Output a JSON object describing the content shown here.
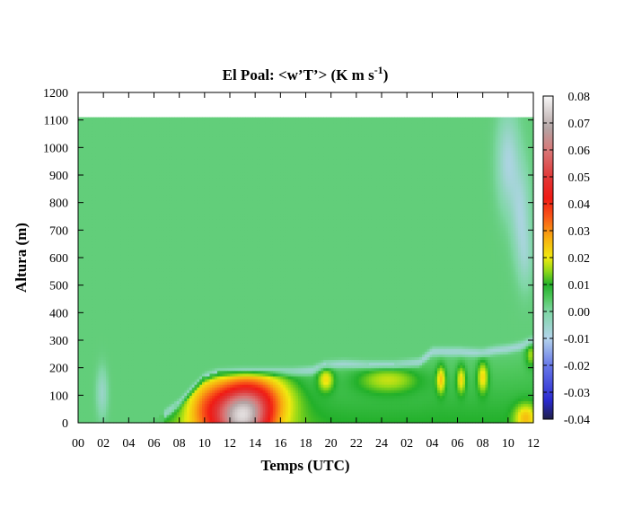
{
  "chart_data": {
    "type": "heatmap",
    "title": "El Poal: <w’T’> (K m s",
    "title_superscript": "-1",
    "title_suffix": ")",
    "xlabel": "Temps (UTC)",
    "ylabel": "Altura (m)",
    "x_tick_labels": [
      "00",
      "02",
      "04",
      "06",
      "08",
      "10",
      "12",
      "14",
      "16",
      "18",
      "20",
      "22",
      "24",
      "02",
      "04",
      "06",
      "08",
      "10",
      "12"
    ],
    "x_range_hours": [
      0,
      36
    ],
    "ylim": [
      0,
      1200
    ],
    "y_ticks": [
      0,
      100,
      200,
      300,
      400,
      500,
      600,
      700,
      800,
      900,
      1000,
      1100,
      1200
    ],
    "data_top_height": 1110,
    "background_value": 0.003,
    "colorbar": {
      "range": [
        -0.04,
        0.08
      ],
      "ticks": [
        "0.08",
        "0.07",
        "0.06",
        "0.05",
        "0.04",
        "0.03",
        "0.02",
        "0.01",
        "0.00",
        "-0.01",
        "-0.02",
        "-0.03",
        "-0.04"
      ],
      "stops": [
        {
          "v": -0.04,
          "color": "#20204a"
        },
        {
          "v": -0.033,
          "color": "#2a2ad0"
        },
        {
          "v": -0.02,
          "color": "#6878e8"
        },
        {
          "v": -0.01,
          "color": "#b4d4ec"
        },
        {
          "v": 0.0,
          "color": "#7ed6a4"
        },
        {
          "v": 0.005,
          "color": "#50c85e"
        },
        {
          "v": 0.01,
          "color": "#22b02a"
        },
        {
          "v": 0.015,
          "color": "#90d818"
        },
        {
          "v": 0.02,
          "color": "#f0ea10"
        },
        {
          "v": 0.027,
          "color": "#f8b010"
        },
        {
          "v": 0.035,
          "color": "#f85818"
        },
        {
          "v": 0.042,
          "color": "#f01a14"
        },
        {
          "v": 0.05,
          "color": "#e03838"
        },
        {
          "v": 0.06,
          "color": "#d87878"
        },
        {
          "v": 0.068,
          "color": "#b4a4a4"
        },
        {
          "v": 0.08,
          "color": "#f8f8f8"
        }
      ]
    },
    "boundary_layer_top": {
      "t_hours": [
        0,
        5.7,
        6.5,
        8,
        9,
        10,
        11,
        13,
        15,
        17,
        18.5,
        19.5,
        21,
        23,
        25,
        27,
        28,
        30,
        32,
        33,
        34,
        35,
        36
      ],
      "height_m": [
        0,
        0,
        20,
        70,
        120,
        165,
        180,
        185,
        185,
        185,
        190,
        210,
        215,
        210,
        210,
        220,
        260,
        260,
        255,
        265,
        270,
        280,
        300
      ]
    },
    "heat_flux_cores": [
      {
        "t": 13.0,
        "h": 20,
        "sx": 1.5,
        "sh": 70,
        "v": 0.044
      },
      {
        "t": 12.8,
        "h": 70,
        "sx": 2.6,
        "sh": 110,
        "v": 0.02
      },
      {
        "t": 14.5,
        "h": 100,
        "sx": 1.8,
        "sh": 60,
        "v": 0.012
      },
      {
        "t": 10.0,
        "h": 60,
        "sx": 1.3,
        "sh": 80,
        "v": 0.012
      },
      {
        "t": 19.6,
        "h": 160,
        "sx": 0.45,
        "sh": 30,
        "v": 0.016
      },
      {
        "t": 24.5,
        "h": 160,
        "sx": 1.8,
        "sh": 35,
        "v": 0.013
      },
      {
        "t": 28.7,
        "h": 160,
        "sx": 0.25,
        "sh": 35,
        "v": 0.018
      },
      {
        "t": 30.3,
        "h": 160,
        "sx": 0.25,
        "sh": 35,
        "v": 0.016
      },
      {
        "t": 32.0,
        "h": 170,
        "sx": 0.3,
        "sh": 40,
        "v": 0.017
      },
      {
        "t": 35.4,
        "h": 20,
        "sx": 0.6,
        "sh": 35,
        "v": 0.016
      },
      {
        "t": 35.8,
        "h": 250,
        "sx": 0.3,
        "sh": 30,
        "v": 0.012
      }
    ],
    "negative_patches": [
      {
        "t": 1.9,
        "h": 110,
        "sx": 0.3,
        "sh": 60,
        "v": -0.008
      },
      {
        "t": 34.0,
        "h": 950,
        "sx": 0.6,
        "sh": 120,
        "v": -0.011
      },
      {
        "t": 35.0,
        "h": 760,
        "sx": 0.5,
        "sh": 120,
        "v": -0.01
      },
      {
        "t": 35.4,
        "h": 600,
        "sx": 0.4,
        "sh": 80,
        "v": -0.006
      }
    ]
  }
}
